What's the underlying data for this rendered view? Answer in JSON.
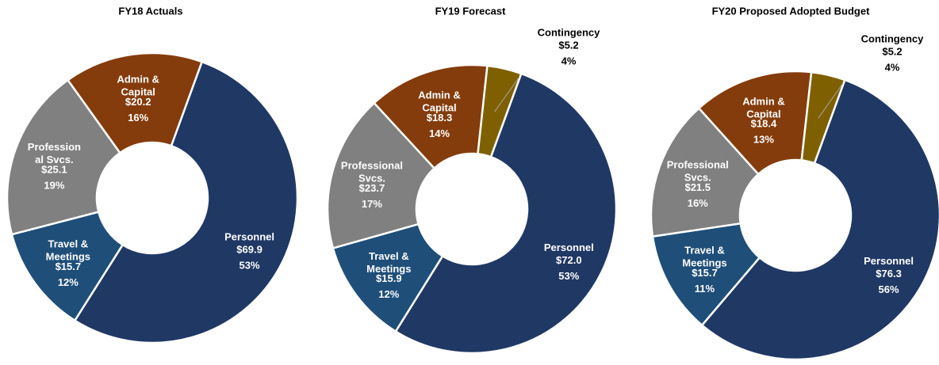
{
  "chart_data": [
    {
      "type": "donut",
      "title": "FY18 Actuals",
      "categories": [
        "Personnel",
        "Travel &\nMeetings",
        "Profession\nal Svcs.",
        "Admin &\nCapital"
      ],
      "values": [
        69.9,
        15.7,
        25.1,
        20.2
      ],
      "value_labels": [
        "$69.9",
        "$15.7",
        "$25.1",
        "$20.2"
      ],
      "shares": [
        53,
        12,
        19,
        16
      ],
      "share_labels": [
        "53%",
        "12%",
        "19%",
        "16%"
      ],
      "colors": [
        "#203864",
        "#1f4e79",
        "#808080",
        "#843c0c"
      ]
    },
    {
      "type": "donut",
      "title": "FY19 Forecast",
      "categories": [
        "Personnel",
        "Travel &\nMeetings",
        "Professional\nSvcs.",
        "Admin &\nCapital",
        "Contingency"
      ],
      "values": [
        72.0,
        15.9,
        23.7,
        18.3,
        5.2
      ],
      "value_labels": [
        "$72.0",
        "$15.9",
        "$23.7",
        "$18.3",
        "$5.2"
      ],
      "shares": [
        53,
        12,
        17,
        14,
        4
      ],
      "share_labels": [
        "53%",
        "12%",
        "17%",
        "14%",
        "4%"
      ],
      "colors": [
        "#203864",
        "#1f4e79",
        "#808080",
        "#843c0c",
        "#7f6000"
      ]
    },
    {
      "type": "donut",
      "title": "FY20 Proposed Adopted Budget",
      "categories": [
        "Personnel",
        "Travel &\nMeetings",
        "Professional\nSvcs.",
        "Admin &\nCapital",
        "Contingency"
      ],
      "values": [
        76.3,
        15.7,
        21.5,
        18.4,
        5.2
      ],
      "value_labels": [
        "$76.3",
        "$15.7",
        "$21.5",
        "$18.4",
        "$5.2"
      ],
      "shares": [
        56,
        11,
        16,
        13,
        4
      ],
      "share_labels": [
        "56%",
        "11%",
        "16%",
        "13%",
        "4%"
      ],
      "colors": [
        "#203864",
        "#1f4e79",
        "#808080",
        "#843c0c",
        "#7f6000"
      ]
    }
  ]
}
